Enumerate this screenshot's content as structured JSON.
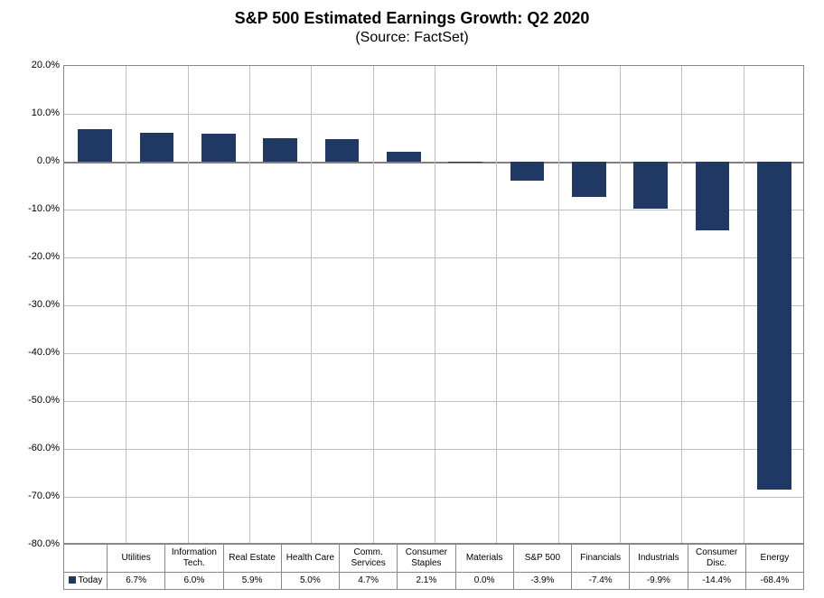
{
  "chart": {
    "type": "bar",
    "title": "S&P 500 Estimated Earnings Growth: Q2 2020",
    "subtitle": "(Source: FactSet)",
    "title_fontsize": 18,
    "subtitle_fontsize": 16,
    "background_color": "#ffffff",
    "grid_color": "#bfbfbf",
    "axis_color": "#888888",
    "plot_border_color": "#808080",
    "ylim": [
      -80,
      20
    ],
    "ytick_step": 10,
    "yticks": [
      "20.0%",
      "10.0%",
      "0.0%",
      "-10.0%",
      "-20.0%",
      "-30.0%",
      "-40.0%",
      "-50.0%",
      "-60.0%",
      "-70.0%",
      "-80.0%"
    ],
    "ytick_values": [
      20,
      10,
      0,
      -10,
      -20,
      -30,
      -40,
      -50,
      -60,
      -70,
      -80
    ],
    "bar_color": "#1f3864",
    "bar_width_ratio": 0.55,
    "categories": [
      "Utilities",
      "Information Tech.",
      "Real Estate",
      "Health Care",
      "Comm. Services",
      "Consumer Staples",
      "Materials",
      "S&P 500",
      "Financials",
      "Industrials",
      "Consumer Disc.",
      "Energy"
    ],
    "series": {
      "name": "Today",
      "values": [
        6.7,
        6.0,
        5.9,
        5.0,
        4.7,
        2.1,
        0.0,
        -3.9,
        -7.4,
        -9.9,
        -14.4,
        -68.4
      ],
      "labels": [
        "6.7%",
        "6.0%",
        "5.9%",
        "5.0%",
        "4.7%",
        "2.1%",
        "0.0%",
        "-3.9%",
        "-7.4%",
        "-9.9%",
        "-14.4%",
        "-68.4%"
      ]
    },
    "label_fontsize": 10,
    "ytick_fontsize": 11
  }
}
